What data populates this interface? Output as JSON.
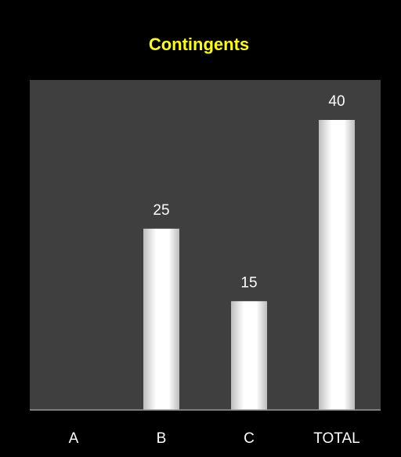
{
  "chart_data": {
    "type": "bar",
    "title": "Contingents",
    "categories": [
      "A",
      "B",
      "C",
      "TOTAL"
    ],
    "values": [
      0,
      25,
      15,
      40
    ],
    "data_labels": [
      "",
      "25",
      "15",
      "40"
    ],
    "xlabel": "",
    "ylabel": "",
    "ylim": [
      0,
      40
    ],
    "grid": false,
    "legend": "none"
  },
  "colors": {
    "page_background": "#000000",
    "plot_background": "#3f3f3f",
    "title": "#ffff00",
    "text": "#ffffff",
    "bar_light": "#ffffff",
    "bar_dark": "#bdbdbd",
    "axis_line": "#9a9a9a"
  }
}
